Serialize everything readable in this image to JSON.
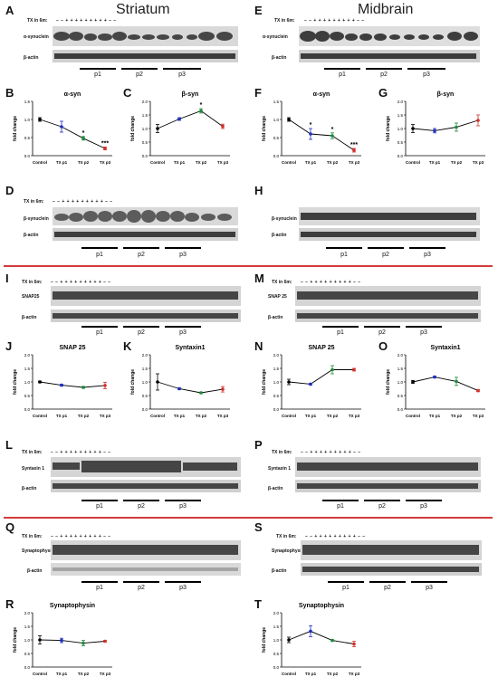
{
  "sections": {
    "left_title": "Striatum",
    "right_title": "Midbrain"
  },
  "labels": [
    "A",
    "B",
    "C",
    "D",
    "E",
    "F",
    "G",
    "H",
    "I",
    "J",
    "K",
    "L",
    "M",
    "N",
    "O",
    "P",
    "Q",
    "R",
    "S",
    "T"
  ],
  "blot_text": {
    "tx": "TX in 6m:",
    "signs_A": "–  –  +  +  +  +  +  +  +  +  +  –  –",
    "signs_E": "–  –  +  +  +  +  +  +  +  +  +  –  –",
    "alpha": "α-synuclein",
    "beta_syn": "β-synuclein",
    "beta_actin": "β-actin",
    "snap25": "SNAP25",
    "snap25b": "SNAP 25",
    "syntaxin": "Syntaxin 1",
    "synaptophysin": "Synaptophysin",
    "p1": "p1",
    "p2": "p2",
    "p3": "p3"
  },
  "colors": {
    "control": "#000000",
    "p1": "#1f2fbf",
    "p2": "#1e8a3a",
    "p3": "#d2302a",
    "separator": "#d23b3b"
  },
  "chart_data": [
    {
      "id": "B",
      "type": "line",
      "title": "α-syn",
      "ylabel": "fold change",
      "categories": [
        "Control",
        "TX p1",
        "TX p2",
        "TX p3"
      ],
      "values": [
        1.0,
        0.8,
        0.48,
        0.2
      ],
      "errors": [
        0.05,
        0.15,
        0.05,
        0.04
      ],
      "sig": [
        "",
        "",
        "*",
        "***"
      ],
      "ylim": [
        0,
        1.5
      ],
      "yticks": [
        "0.0",
        "0.5",
        "1.0",
        "1.5"
      ]
    },
    {
      "id": "C",
      "type": "line",
      "title": "β-syn",
      "ylabel": "fold change",
      "categories": [
        "Control",
        "TX p1",
        "TX p2",
        "TX p3"
      ],
      "values": [
        1.0,
        1.35,
        1.65,
        1.08
      ],
      "errors": [
        0.15,
        0.05,
        0.08,
        0.08
      ],
      "sig": [
        "",
        "",
        "*",
        ""
      ],
      "ylim": [
        0,
        2.0
      ],
      "yticks": [
        "0.0",
        "0.5",
        "1.0",
        "1.5",
        "2.0"
      ]
    },
    {
      "id": "F",
      "type": "line",
      "title": "α-syn",
      "ylabel": "fold change",
      "categories": [
        "Control",
        "TX p1",
        "TX p2",
        "TX p3"
      ],
      "values": [
        1.0,
        0.6,
        0.55,
        0.15
      ],
      "errors": [
        0.05,
        0.15,
        0.08,
        0.05
      ],
      "sig": [
        "",
        "*",
        "*",
        "***"
      ],
      "ylim": [
        0,
        1.5
      ],
      "yticks": [
        "0.0",
        "0.5",
        "1.0",
        "1.5"
      ]
    },
    {
      "id": "G",
      "type": "line",
      "title": "β-syn",
      "ylabel": "fold change",
      "categories": [
        "Control",
        "TX p1",
        "TX p2",
        "TX p3"
      ],
      "values": [
        1.0,
        0.92,
        1.05,
        1.3
      ],
      "errors": [
        0.15,
        0.08,
        0.15,
        0.2
      ],
      "sig": [
        "",
        "",
        "",
        ""
      ],
      "ylim": [
        0,
        2.0
      ],
      "yticks": [
        "0.0",
        "0.5",
        "1.0",
        "1.5",
        "2.0"
      ]
    },
    {
      "id": "J",
      "type": "line",
      "title": "SNAP 25",
      "ylabel": "fold change",
      "categories": [
        "Control",
        "TX p1",
        "TX p2",
        "TX p3"
      ],
      "values": [
        1.0,
        0.88,
        0.8,
        0.87
      ],
      "errors": [
        0.03,
        0.03,
        0.03,
        0.12
      ],
      "sig": [
        "",
        "",
        "",
        ""
      ],
      "ylim": [
        0,
        2.0
      ],
      "yticks": [
        "0.0",
        "0.5",
        "1.0",
        "1.5",
        "2.0"
      ]
    },
    {
      "id": "K",
      "type": "line",
      "title": "Syntaxin1",
      "ylabel": "fold change",
      "categories": [
        "Control",
        "TX p1",
        "TX p2",
        "TX p3"
      ],
      "values": [
        1.0,
        0.75,
        0.6,
        0.73
      ],
      "errors": [
        0.3,
        0.03,
        0.03,
        0.1
      ],
      "sig": [
        "",
        "",
        "",
        ""
      ],
      "ylim": [
        0,
        2.0
      ],
      "yticks": [
        "0.0",
        "0.5",
        "1.0",
        "1.5",
        "2.0"
      ]
    },
    {
      "id": "N",
      "type": "line",
      "title": "SNAP 25",
      "ylabel": "fold change",
      "categories": [
        "Control",
        "TX p1",
        "TX p2",
        "TX p3"
      ],
      "values": [
        1.0,
        0.92,
        1.45,
        1.45
      ],
      "errors": [
        0.1,
        0.03,
        0.15,
        0.05
      ],
      "sig": [
        "",
        "",
        "",
        ""
      ],
      "ylim": [
        0,
        2.0
      ],
      "yticks": [
        "0.0",
        "0.5",
        "1.0",
        "1.5",
        "2.0"
      ]
    },
    {
      "id": "O",
      "type": "line",
      "title": "Syntaxin1",
      "ylabel": "fold change",
      "categories": [
        "Control",
        "TX p1",
        "TX p2",
        "TX p3"
      ],
      "values": [
        1.0,
        1.18,
        1.02,
        0.68
      ],
      "errors": [
        0.05,
        0.03,
        0.15,
        0.04
      ],
      "sig": [
        "",
        "",
        "",
        ""
      ],
      "ylim": [
        0,
        2.0
      ],
      "yticks": [
        "0.0",
        "0.5",
        "1.0",
        "1.5",
        "2.0"
      ]
    },
    {
      "id": "R",
      "type": "line",
      "title": "Synaptophysin",
      "ylabel": "fold change",
      "categories": [
        "Control",
        "TX p1",
        "TX p2",
        "TX p3"
      ],
      "values": [
        1.0,
        0.98,
        0.88,
        0.95
      ],
      "errors": [
        0.15,
        0.08,
        0.1,
        0.03
      ],
      "sig": [
        "",
        "",
        "",
        ""
      ],
      "ylim": [
        0,
        2.0
      ],
      "yticks": [
        "0.0",
        "0.5",
        "1.0",
        "1.5",
        "2.0"
      ]
    },
    {
      "id": "T",
      "type": "line",
      "title": "Synaptophysin",
      "ylabel": "fold change",
      "categories": [
        "Control",
        "TX p1",
        "TX p2",
        "TX p3"
      ],
      "values": [
        1.0,
        1.32,
        0.98,
        0.85
      ],
      "errors": [
        0.1,
        0.2,
        0.03,
        0.1
      ],
      "sig": [
        "",
        "",
        "",
        ""
      ],
      "ylim": [
        0,
        2.0
      ],
      "yticks": [
        "0.0",
        "0.5",
        "1.0",
        "1.5",
        "2.0"
      ]
    }
  ]
}
